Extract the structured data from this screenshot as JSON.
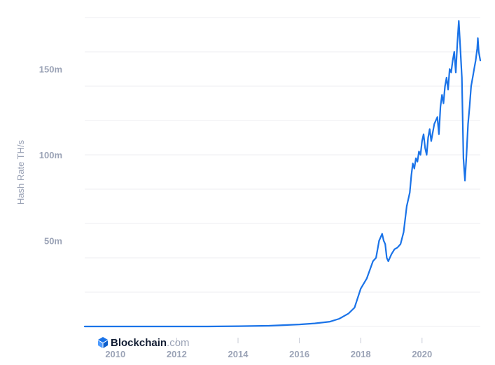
{
  "chart_data": {
    "type": "line",
    "title": "",
    "xlabel": "",
    "ylabel": "Hash Rate TH/s",
    "x_ticks": [
      "2010",
      "2012",
      "2014",
      "2016",
      "2018",
      "2020"
    ],
    "y_ticks": [
      "50m",
      "100m",
      "150m"
    ],
    "xlim": [
      2009.0,
      2021.9
    ],
    "ylim": [
      0,
      180000000
    ],
    "grid": true,
    "series": [
      {
        "color": "#1a73e8",
        "x": [
          2009.0,
          2013.0,
          2014.0,
          2015.0,
          2016.0,
          2016.5,
          2017.0,
          2017.3,
          2017.6,
          2017.8,
          2018.0,
          2018.2,
          2018.4,
          2018.5,
          2018.6,
          2018.65,
          2018.7,
          2018.75,
          2018.8,
          2018.85,
          2018.9,
          2019.0,
          2019.1,
          2019.2,
          2019.3,
          2019.4,
          2019.5,
          2019.55,
          2019.6,
          2019.65,
          2019.7,
          2019.75,
          2019.8,
          2019.85,
          2019.9,
          2019.95,
          2020.0,
          2020.05,
          2020.1,
          2020.15,
          2020.2,
          2020.25,
          2020.3,
          2020.4,
          2020.5,
          2020.55,
          2020.6,
          2020.65,
          2020.7,
          2020.75,
          2020.8,
          2020.85,
          2020.9,
          2020.95,
          2021.0,
          2021.05,
          2021.1,
          2021.15,
          2021.2,
          2021.25,
          2021.3,
          2021.35,
          2021.4,
          2021.45,
          2021.5,
          2021.55,
          2021.6,
          2021.65,
          2021.7,
          2021.75,
          2021.8,
          2021.82,
          2021.85,
          2021.9
        ],
        "y": [
          0,
          10000,
          150000,
          400000,
          1200000,
          1800000,
          2800000,
          4500000,
          7500000,
          11000000,
          22000000,
          28000000,
          38000000,
          40000000,
          50000000,
          52000000,
          54000000,
          50000000,
          48000000,
          40000000,
          38000000,
          42000000,
          45000000,
          46000000,
          48000000,
          55000000,
          70000000,
          74000000,
          78000000,
          88000000,
          95000000,
          92000000,
          98000000,
          96000000,
          102000000,
          100000000,
          108000000,
          112000000,
          104000000,
          100000000,
          110000000,
          115000000,
          108000000,
          118000000,
          122000000,
          112000000,
          128000000,
          135000000,
          130000000,
          140000000,
          145000000,
          138000000,
          150000000,
          148000000,
          155000000,
          160000000,
          148000000,
          165000000,
          178000000,
          162000000,
          145000000,
          98000000,
          85000000,
          100000000,
          118000000,
          128000000,
          140000000,
          145000000,
          150000000,
          155000000,
          162000000,
          168000000,
          160000000,
          155000000
        ]
      }
    ]
  },
  "branding": {
    "name": "Blockchain",
    "suffix": ".com",
    "icon": "blockchain-cube-icon",
    "color": "#121d33",
    "accent": "#1a73e8"
  }
}
